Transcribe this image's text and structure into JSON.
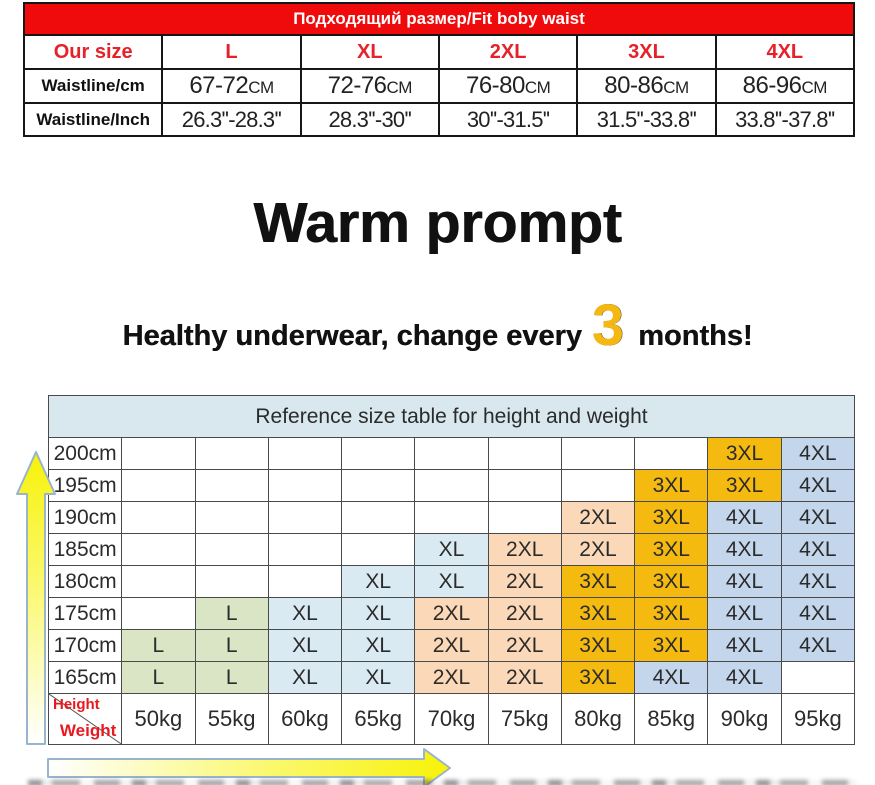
{
  "fit_table": {
    "title": "Подходящий размер/Fit boby waist",
    "size_row": {
      "label": "Our size",
      "sizes": [
        "L",
        "XL",
        "2XL",
        "3XL",
        "4XL"
      ]
    },
    "cm_row": {
      "label": "Waistline/cm",
      "unit": "CM",
      "values": [
        "67-72",
        "72-76",
        "76-80",
        "80-86",
        "86-96"
      ]
    },
    "inch_row": {
      "label": "Waistline/Inch",
      "values": [
        "26.3''-28.3''",
        "28.3''-30''",
        "30''-31.5''",
        "31.5''-33.8''",
        "33.8''-37.8''"
      ]
    }
  },
  "warm_prompt": {
    "title": "Warm prompt",
    "subtitle_before": "Healthy underwear, change every",
    "subtitle_number": "3",
    "subtitle_after": "months!"
  },
  "size_chart": {
    "title": "Reference size table for height and weight",
    "corner": {
      "top_label": "Height",
      "bottom_label": "Weight"
    },
    "weights": [
      "50kg",
      "55kg",
      "60kg",
      "65kg",
      "70kg",
      "75kg",
      "80kg",
      "85kg",
      "90kg",
      "95kg"
    ],
    "heights": [
      "200cm",
      "195cm",
      "190cm",
      "185cm",
      "180cm",
      "175cm",
      "170cm",
      "165cm"
    ],
    "cells": [
      [
        "",
        "",
        "",
        "",
        "",
        "",
        "",
        "",
        "3XL",
        "4XL"
      ],
      [
        "",
        "",
        "",
        "",
        "",
        "",
        "",
        "3XL",
        "3XL",
        "4XL"
      ],
      [
        "",
        "",
        "",
        "",
        "",
        "",
        "2XL",
        "3XL",
        "4XL",
        "4XL"
      ],
      [
        "",
        "",
        "",
        "",
        "XL",
        "2XL",
        "2XL",
        "3XL",
        "4XL",
        "4XL"
      ],
      [
        "",
        "",
        "",
        "XL",
        "XL",
        "2XL",
        "3XL",
        "3XL",
        "4XL",
        "4XL"
      ],
      [
        "",
        "L",
        "XL",
        "XL",
        "2XL",
        "2XL",
        "3XL",
        "3XL",
        "4XL",
        "4XL"
      ],
      [
        "L",
        "L",
        "XL",
        "XL",
        "2XL",
        "2XL",
        "3XL",
        "3XL",
        "4XL",
        "4XL"
      ],
      [
        "L",
        "L",
        "XL",
        "XL",
        "2XL",
        "2XL",
        "3XL",
        "4XL",
        "4XL",
        ""
      ]
    ]
  },
  "colors": {
    "header_red_bg": "#ef0b0b",
    "header_red_text": "#ffffff",
    "accent_red_text": "#e62129",
    "big_three_gold": "#f5b712",
    "size_table_header_bg": "#d9e8ee",
    "size_L": "#d9e5c5",
    "size_XL": "#daeaf2",
    "size_2XL": "#fad8b8",
    "size_3XL": "#f5ba10",
    "size_4XL": "#c3d6eb",
    "arrow_yellow": "#f7f208",
    "arrow_border": "#9ab4d0"
  }
}
